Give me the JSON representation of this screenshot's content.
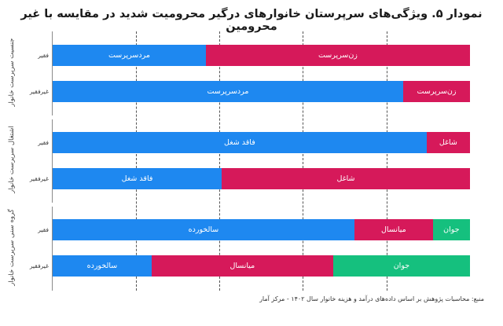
{
  "title": "نمودار ۵. ویژگی‌های سرپرستان خانوارهای درگیر محرومیت شدید در مقایسه با غیر محرومین",
  "source": "منبع: محاسبات پژوهش بر اساس داده‌های درآمد و هزینه خانوار سال ۱۴۰۲ - مرکز آمار",
  "colors": {
    "blue": "#1E88F0",
    "crimson": "#D6195A",
    "green": "#15C07E"
  },
  "chart_data": {
    "type": "bar",
    "orientation": "horizontal",
    "stacked": true,
    "normalized_percent": true,
    "title": "نمودار ۵. ویژگی‌های سرپرستان خانوارهای درگیر محرومیت شدید در مقایسه با غیر محرومین",
    "xlabel": "",
    "ylabel": "",
    "xlim": [
      0,
      100
    ],
    "gridlines_x": [
      20,
      40,
      60,
      80
    ],
    "grid": true,
    "legend": "inline-segment-labels",
    "groups": [
      {
        "label": "جنسیت سرپرست خانوار",
        "rows": [
          {
            "label": "فقیر",
            "segments": [
              {
                "name": "مردسرپرست",
                "value": 36.7,
                "color": "#1E88F0"
              },
              {
                "name": "زن‌سرپرست",
                "value": 63.3,
                "color": "#D6195A"
              }
            ]
          },
          {
            "label": "غیرفقیر",
            "segments": [
              {
                "name": "مردسرپرست",
                "value": 84.0,
                "color": "#1E88F0"
              },
              {
                "name": "زن‌سرپرست",
                "value": 16.0,
                "color": "#D6195A"
              }
            ]
          }
        ]
      },
      {
        "label": "اشتغال سرپرست خانوار",
        "rows": [
          {
            "label": "فقیر",
            "segments": [
              {
                "name": "فاقد شغل",
                "value": 89.6,
                "color": "#1E88F0"
              },
              {
                "name": "شاغل",
                "value": 10.4,
                "color": "#D6195A"
              }
            ]
          },
          {
            "label": "غیرفقیر",
            "segments": [
              {
                "name": "فاقد شغل",
                "value": 40.5,
                "color": "#1E88F0"
              },
              {
                "name": "شاغل",
                "value": 59.5,
                "color": "#D6195A"
              }
            ]
          }
        ]
      },
      {
        "label": "گروه سنی سرپرست خانوار",
        "rows": [
          {
            "label": "فقیر",
            "segments": [
              {
                "name": "سالخورده",
                "value": 72.3,
                "color": "#1E88F0"
              },
              {
                "name": "میانسال",
                "value": 18.8,
                "color": "#D6195A"
              },
              {
                "name": "جوان",
                "value": 8.9,
                "color": "#15C07E"
              }
            ]
          },
          {
            "label": "غیرفقیر",
            "segments": [
              {
                "name": "سالخورده",
                "value": 23.7,
                "color": "#1E88F0"
              },
              {
                "name": "میانسال",
                "value": 43.5,
                "color": "#D6195A"
              },
              {
                "name": "جوان",
                "value": 32.8,
                "color": "#15C07E"
              }
            ]
          }
        ]
      }
    ]
  }
}
